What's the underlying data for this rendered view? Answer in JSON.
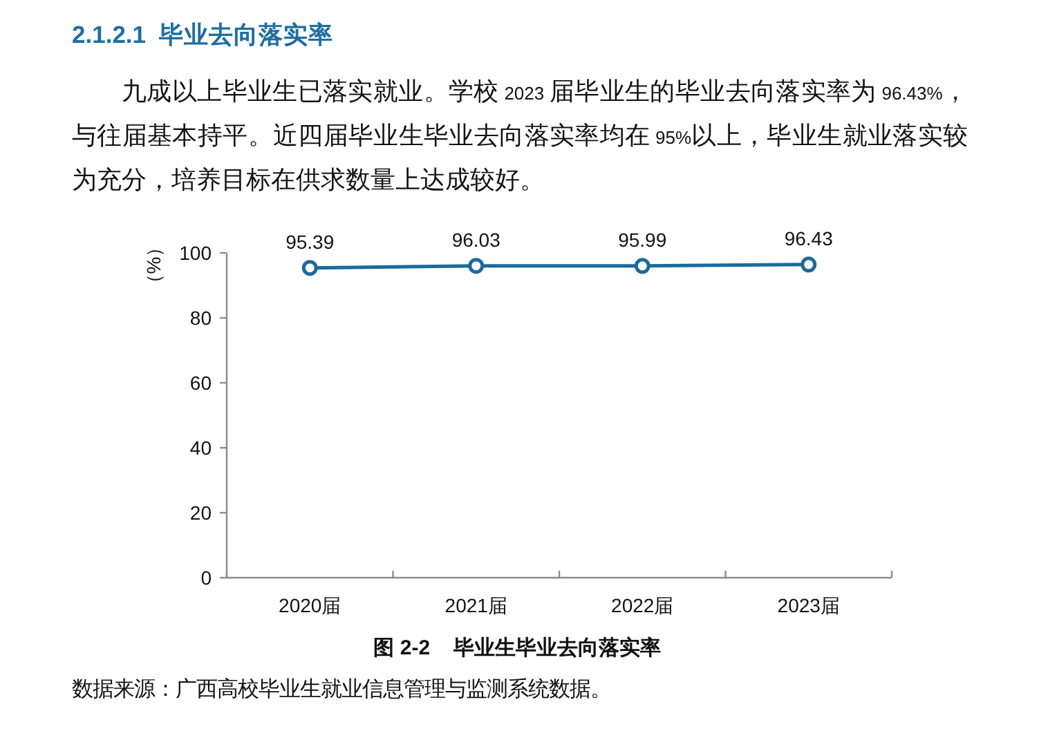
{
  "chart_data": {
    "type": "line",
    "title": "图 2-2    毕业生毕业去向落实率",
    "ylabel": "（%）",
    "categories": [
      "2020届",
      "2021届",
      "2022届",
      "2023届"
    ],
    "series": [
      {
        "color": "#1b6a9c",
        "values": [
          95.39,
          96.03,
          95.99,
          96.43
        ]
      }
    ],
    "ylim": [
      0,
      100
    ],
    "yticks": [
      0,
      20,
      40,
      60,
      80,
      100
    ],
    "data_labels": true,
    "marker": "circle",
    "annotations": [
      "2.1.2.1  毕业去向落实率",
      "九成以上毕业生已落实就业。学校 2023 届毕业生的毕业去向落实率为 96.43%，与往届基本持平。近四届毕业生毕业去向落实率均在 95%以上，毕业生就业落实较为充分，培养目标在供求数量上达成较好。",
      "数据来源：广西高校毕业生就业信息管理与监测系统数据。"
    ]
  }
}
